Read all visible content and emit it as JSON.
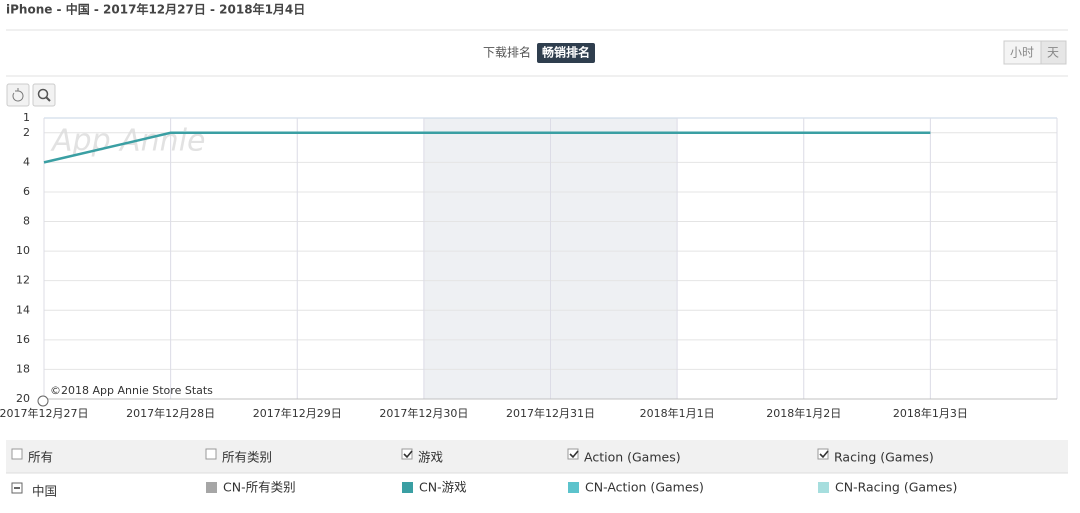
{
  "header": {
    "title": "iPhone - 中国 - 2017年12月27日 - 2018年1月4日"
  },
  "tabs": [
    "下载排名",
    "畅销排名"
  ],
  "granularity": [
    "小时",
    "天"
  ],
  "chart_data": {
    "type": "line",
    "watermark": "App Annie",
    "credit": "©2018 App Annie Store Stats",
    "categories": [
      "2017年12月27日",
      "2017年12月28日",
      "2017年12月29日",
      "2017年12月30日",
      "2017年12月31日",
      "2018年1月1日",
      "2018年1月2日",
      "2018年1月3日",
      null
    ],
    "series": [
      {
        "name": "CN-所有类别",
        "color": "#a6a6a6",
        "values": [
          null,
          null,
          null,
          null,
          null,
          null,
          null,
          null,
          null
        ]
      },
      {
        "name": "CN-游戏",
        "color": "#3a9fa3",
        "values": [
          4,
          2,
          2,
          2,
          2,
          2,
          2,
          2,
          null
        ]
      },
      {
        "name": "CN-Action (Games)",
        "color": "#5cc3cc",
        "values": [
          null,
          null,
          null,
          null,
          null,
          null,
          null,
          null,
          null
        ]
      },
      {
        "name": "CN-Racing (Games)",
        "color": "#a6dede",
        "values": [
          null,
          null,
          null,
          null,
          null,
          null,
          null,
          null,
          null
        ]
      }
    ],
    "ylim": [
      20,
      1
    ],
    "yticks": [
      1,
      2,
      4,
      6,
      8,
      10,
      12,
      14,
      16,
      18,
      20
    ],
    "grid": true
  },
  "filters": [
    {
      "label": "所有",
      "checked": false
    },
    {
      "label": "所有类别",
      "checked": false
    },
    {
      "label": "游戏",
      "checked": true
    },
    {
      "label": "Action (Games)",
      "checked": true
    },
    {
      "label": "Racing (Games)",
      "checked": true
    }
  ],
  "country": "中国"
}
